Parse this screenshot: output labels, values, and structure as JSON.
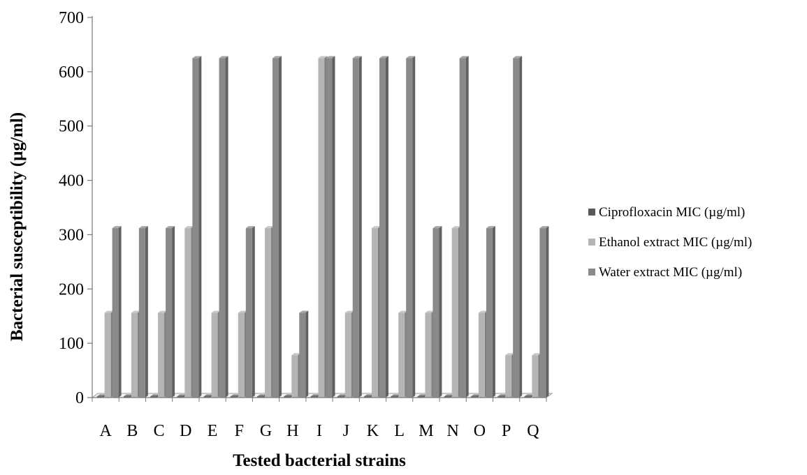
{
  "chart_data": {
    "type": "bar",
    "title": "",
    "xlabel": "Tested bacterial strains",
    "ylabel": "Bacterial susceptibility (µg/ml)",
    "ylim": [
      0,
      700
    ],
    "yticks": [
      0,
      100,
      200,
      300,
      400,
      500,
      600,
      700
    ],
    "grid": false,
    "legend_position": "right",
    "categories": [
      "A",
      "B",
      "C",
      "D",
      "E",
      "F",
      "G",
      "H",
      "I",
      "J",
      "K",
      "L",
      "M",
      "N",
      "O",
      "P",
      "Q"
    ],
    "series": [
      {
        "name": "Ciprofloxacin MIC (µg/ml)",
        "color": "#5a5a5a",
        "values": [
          2,
          2,
          2,
          2,
          2,
          2,
          2,
          2,
          2,
          2,
          2,
          2,
          2,
          2,
          2,
          2,
          2
        ]
      },
      {
        "name": "Ethanol extract MIC (µg/ml)",
        "color": "#b5b5b5",
        "values": [
          156,
          156,
          156,
          312,
          156,
          156,
          312,
          78,
          625,
          156,
          312,
          156,
          156,
          312,
          156,
          78,
          78
        ]
      },
      {
        "name": "Water extract MIC (µg/ml)",
        "color": "#8a8a8a",
        "values": [
          312,
          312,
          312,
          625,
          625,
          312,
          625,
          156,
          625,
          625,
          625,
          625,
          312,
          625,
          312,
          625,
          312
        ]
      }
    ]
  }
}
